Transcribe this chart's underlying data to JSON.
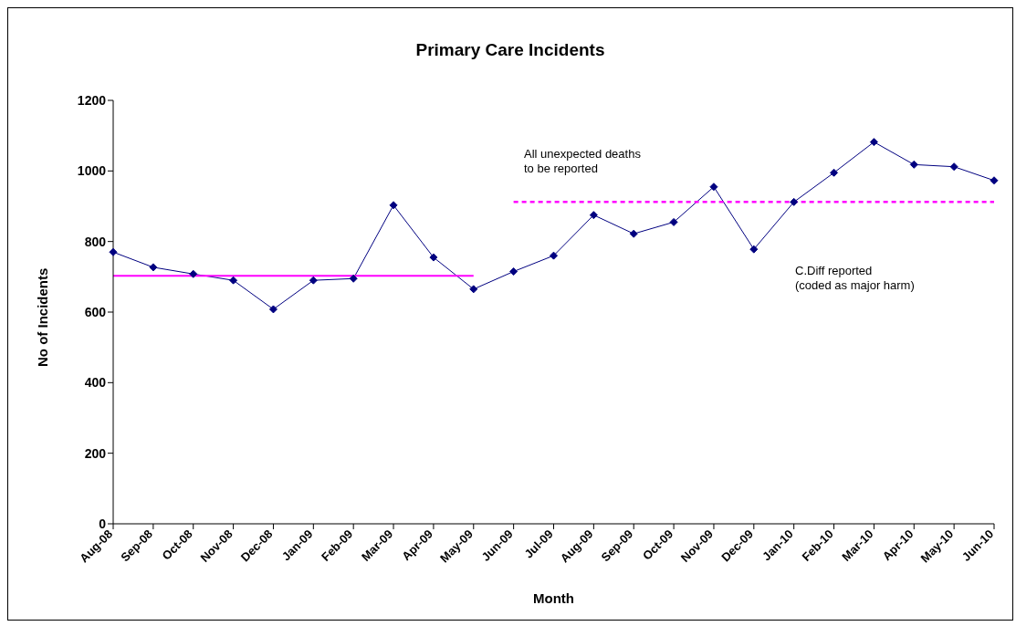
{
  "chart_data": {
    "type": "line",
    "title": "Primary Care Incidents",
    "xlabel": "Month",
    "ylabel": "No of Incidents",
    "categories": [
      "Aug-08",
      "Sep-08",
      "Oct-08",
      "Nov-08",
      "Dec-08",
      "Jan-09",
      "Feb-09",
      "Mar-09",
      "Apr-09",
      "May-09",
      "Jun-09",
      "Jul-09",
      "Aug-09",
      "Sep-09",
      "Oct-09",
      "Nov-09",
      "Dec-09",
      "Jan-10",
      "Feb-10",
      "Mar-10",
      "Apr-10",
      "May-10",
      "Jun-10"
    ],
    "series": [
      {
        "color": "#000080",
        "marker": "diamond",
        "line_style": "solid",
        "values": [
          770,
          727,
          708,
          690,
          608,
          690,
          695,
          903,
          755,
          665,
          715,
          760,
          875,
          822,
          855,
          955,
          778,
          912,
          995,
          1082,
          1018,
          1012,
          973
        ]
      },
      {
        "color": "#ff00ff",
        "marker": "none",
        "line_style": "solid",
        "values": [
          703,
          703,
          703,
          703,
          703,
          703,
          703,
          703,
          703,
          703,
          null,
          null,
          null,
          null,
          null,
          null,
          null,
          null,
          null,
          null,
          null,
          null,
          null
        ]
      },
      {
        "color": "#ff00ff",
        "marker": "none",
        "line_style": "dashed",
        "values": [
          null,
          null,
          null,
          null,
          null,
          null,
          null,
          null,
          null,
          null,
          912,
          912,
          912,
          912,
          912,
          912,
          912,
          912,
          912,
          912,
          912,
          912,
          912
        ]
      }
    ],
    "ylim": [
      0,
      1200
    ],
    "yticks": [
      0,
      200,
      400,
      600,
      800,
      1000,
      1200
    ],
    "annotations": [
      "All unexpected deaths\nto be reported",
      "C.Diff reported\n(coded as major harm)"
    ]
  }
}
